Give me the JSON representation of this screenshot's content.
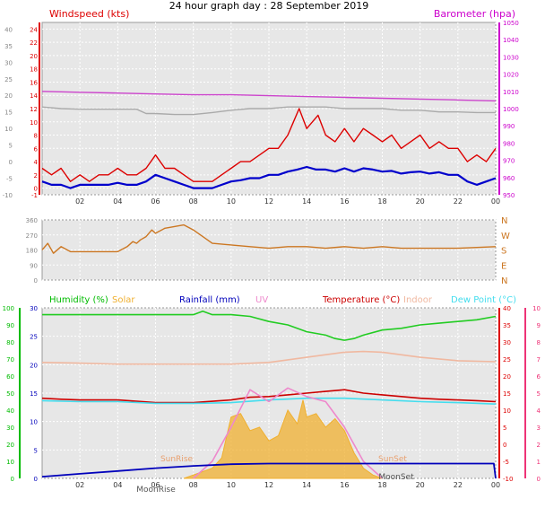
{
  "title": "24 hour graph day : 28 September 2019",
  "colors": {
    "windspeed": "#dd0000",
    "gust": "#ff0000",
    "avgwind": "#0000cc",
    "barometer": "#cc44cc",
    "barometer_prev": "#aaaaaa",
    "direction": "#cc7722",
    "humidity": "#22cc22",
    "solar": "#f0b030",
    "rainfall": "#0000bb",
    "uv": "#ee88cc",
    "temperature": "#cc0000",
    "indoor": "#f0b8a0",
    "dewpoint": "#44ddee",
    "axis_green": "#00bb00",
    "axis_red": "#dd0000",
    "axis_magenta": "#cc00cc",
    "axis_pink": "#ee3377",
    "axis_grey": "#888888"
  },
  "chart_data": [
    {
      "type": "line",
      "panel": "wind-baro",
      "x_ticks": [
        "02",
        "04",
        "06",
        "08",
        "10",
        "12",
        "14",
        "16",
        "18",
        "20",
        "22",
        "00"
      ],
      "xlim": [
        0,
        24
      ],
      "left_axis": {
        "label": "Windspeed (kts)",
        "ticks": [
          "-1",
          "0",
          "2",
          "4",
          "6",
          "8",
          "10",
          "12",
          "14",
          "16",
          "18",
          "20",
          "22",
          "24"
        ],
        "ylim": [
          -1,
          25
        ]
      },
      "left_axis_secondary": {
        "ticks": [
          "-10",
          "-5",
          "0",
          "5",
          "10",
          "15",
          "20",
          "25",
          "30",
          "35",
          "40"
        ],
        "ylim": [
          -10,
          42
        ]
      },
      "right_axis": {
        "label": "Barometer (hpa)",
        "ticks": [
          "950",
          "960",
          "970",
          "980",
          "990",
          "1000",
          "1010",
          "1020",
          "1030",
          "1040",
          "1050"
        ],
        "ylim": [
          950,
          1050
        ]
      },
      "series": [
        {
          "name": "Barometer (hpa)",
          "axis": "right",
          "color_key": "barometer",
          "x": [
            0,
            2,
            4,
            6,
            8,
            10,
            12,
            14,
            16,
            18,
            20,
            22,
            24
          ],
          "y": [
            1010,
            1009.5,
            1009,
            1008.5,
            1008,
            1008,
            1007.5,
            1007,
            1006.5,
            1006,
            1005.5,
            1005,
            1004.5
          ]
        },
        {
          "axis": "left_secondary",
          "color_key": "barometer_prev",
          "x": [
            0,
            1,
            2,
            3,
            4,
            5,
            5.5,
            6,
            7,
            8,
            9,
            10,
            11,
            12,
            13,
            14,
            15,
            16,
            17,
            18,
            19,
            20,
            21,
            22,
            23,
            24
          ],
          "y": [
            16.5,
            16,
            15.8,
            15.8,
            15.8,
            15.8,
            14.5,
            14.5,
            14.2,
            14.2,
            14.8,
            15.5,
            16,
            16,
            16.5,
            16.5,
            16.5,
            16,
            16,
            16,
            15.5,
            15.5,
            15,
            15,
            14.8,
            14.8
          ]
        },
        {
          "name": "Windspeed (kts)",
          "axis": "left",
          "color_key": "windspeed",
          "x": [
            0,
            0.5,
            1,
            1.5,
            2,
            2.5,
            3,
            3.5,
            4,
            4.5,
            5,
            5.5,
            6,
            6.5,
            7,
            7.5,
            8,
            8.5,
            9,
            9.5,
            10,
            10.5,
            11,
            11.5,
            12,
            12.5,
            13,
            13.3,
            13.6,
            14,
            14.3,
            14.6,
            15,
            15.5,
            16,
            16.5,
            17,
            17.5,
            18,
            18.5,
            19,
            19.5,
            20,
            20.5,
            21,
            21.5,
            22,
            22.5,
            23,
            23.5,
            24
          ],
          "y": [
            3,
            2,
            3,
            1,
            2,
            1,
            2,
            2,
            3,
            2,
            2,
            3,
            5,
            3,
            3,
            2,
            1,
            1,
            1,
            2,
            3,
            4,
            4,
            5,
            6,
            6,
            8,
            10,
            12,
            9,
            10,
            11,
            8,
            7,
            9,
            7,
            9,
            8,
            7,
            8,
            6,
            7,
            8,
            6,
            7,
            6,
            6,
            4,
            5,
            4,
            6
          ]
        },
        {
          "axis": "left",
          "color_key": "avgwind",
          "x": [
            0,
            0.5,
            1,
            1.5,
            2,
            2.5,
            3,
            3.5,
            4,
            4.5,
            5,
            5.5,
            6,
            6.5,
            7,
            7.5,
            8,
            8.5,
            9,
            9.5,
            10,
            10.5,
            11,
            11.5,
            12,
            12.5,
            13,
            13.5,
            14,
            14.5,
            15,
            15.5,
            16,
            16.5,
            17,
            17.5,
            18,
            18.5,
            19,
            19.5,
            20,
            20.5,
            21,
            21.5,
            22,
            22.5,
            23,
            23.5,
            24
          ],
          "y": [
            1,
            0.5,
            0.5,
            0,
            0.5,
            0.5,
            0.5,
            0.5,
            0.8,
            0.5,
            0.5,
            1,
            2,
            1.5,
            1,
            0.5,
            0,
            0,
            0,
            0.5,
            1,
            1.2,
            1.5,
            1.5,
            2,
            2,
            2.5,
            2.8,
            3.2,
            2.8,
            2.8,
            2.5,
            3,
            2.5,
            3,
            2.8,
            2.5,
            2.6,
            2.2,
            2.4,
            2.5,
            2.2,
            2.4,
            2,
            2,
            1,
            0.5,
            1,
            1.5
          ]
        }
      ]
    },
    {
      "type": "line",
      "panel": "wind-direction",
      "xlim": [
        0,
        24
      ],
      "left_axis": {
        "ticks": [
          "0",
          "90",
          "180",
          "270",
          "360"
        ],
        "ylim": [
          0,
          360
        ]
      },
      "right_axis": {
        "ticks": [
          "N",
          "E",
          "S",
          "W",
          "N"
        ]
      },
      "series": [
        {
          "axis": "left",
          "color_key": "direction",
          "x": [
            0,
            0.3,
            0.6,
            1,
            1.5,
            2,
            3,
            4,
            4.5,
            4.8,
            5,
            5.2,
            5.5,
            5.8,
            6,
            6.5,
            7,
            7.5,
            8,
            8.5,
            9,
            10,
            11,
            12,
            13,
            14,
            15,
            16,
            17,
            18,
            19,
            20,
            21,
            22,
            23,
            24
          ],
          "y": [
            180,
            220,
            160,
            200,
            170,
            170,
            170,
            170,
            200,
            230,
            220,
            240,
            260,
            300,
            280,
            310,
            320,
            330,
            300,
            260,
            220,
            210,
            200,
            190,
            200,
            200,
            190,
            200,
            190,
            200,
            190,
            190,
            190,
            190,
            195,
            200
          ]
        }
      ]
    },
    {
      "type": "line",
      "panel": "temp-humidity",
      "x_ticks": [
        "02",
        "04",
        "06",
        "08",
        "10",
        "12",
        "14",
        "16",
        "18",
        "20",
        "22",
        "00"
      ],
      "xlim": [
        0,
        24
      ],
      "top_labels": [
        "Humidity (%)",
        "Solar",
        "Rainfall (mm)",
        "UV",
        "Temperature (°C)",
        "Indoor",
        "Dew Point (°C)"
      ],
      "left_axis": {
        "ticks": [
          "0",
          "10",
          "20",
          "30",
          "40",
          "50",
          "60",
          "70",
          "80",
          "90",
          "100"
        ],
        "ylim": [
          0,
          100
        ]
      },
      "left_axis_secondary": {
        "ticks": [
          "0",
          "5",
          "10",
          "15",
          "20",
          "25",
          "30"
        ],
        "ylim": [
          0,
          30
        ]
      },
      "right_axis": {
        "ticks": [
          "-10",
          "-5",
          "0",
          "5",
          "10",
          "15",
          "20",
          "25",
          "30",
          "35",
          "40"
        ],
        "ylim": [
          -10,
          40
        ]
      },
      "right_axis_secondary": {
        "ticks": [
          "0",
          "1",
          "2",
          "3",
          "4",
          "5",
          "6",
          "7",
          "8",
          "9",
          "10"
        ],
        "ylim": [
          0,
          10
        ]
      },
      "annotations": [
        "SunRise",
        "SunSet",
        "MoonRise",
        "MoonSet"
      ],
      "series": [
        {
          "name": "Humidity (%)",
          "axis": "left",
          "color_key": "humidity",
          "x": [
            0,
            2,
            4,
            6,
            8,
            8.5,
            9,
            10,
            11,
            12,
            13,
            14,
            15,
            15.5,
            16,
            16.5,
            17,
            18,
            19,
            20,
            21,
            22,
            23,
            24
          ],
          "y": [
            96,
            96,
            96,
            96,
            96,
            98,
            96,
            96,
            95,
            92,
            90,
            86,
            84,
            82,
            81,
            82,
            84,
            87,
            88,
            90,
            91,
            92,
            93,
            95
          ]
        },
        {
          "name": "Indoor",
          "axis": "right",
          "color_key": "indoor",
          "x": [
            0,
            2,
            4,
            6,
            8,
            10,
            12,
            14,
            16,
            17,
            18,
            20,
            22,
            24
          ],
          "y": [
            24,
            23.8,
            23.5,
            23.5,
            23.5,
            23.5,
            24,
            25.5,
            27,
            27.2,
            27,
            25.5,
            24.5,
            24.2
          ]
        },
        {
          "name": "Temperature (°C)",
          "axis": "right",
          "color_key": "temperature",
          "x": [
            0,
            1,
            2,
            4,
            6,
            8,
            10,
            11,
            12,
            13,
            14,
            15,
            16,
            17,
            18,
            19,
            20,
            21,
            22,
            23,
            24
          ],
          "y": [
            13.5,
            13.2,
            13,
            13,
            12.2,
            12.2,
            13,
            13.8,
            14,
            14.5,
            15,
            15.5,
            16,
            15,
            14.5,
            14,
            13.5,
            13.2,
            13,
            12.8,
            12.5
          ]
        },
        {
          "name": "Dew Point (°C)",
          "axis": "right",
          "color_key": "dewpoint",
          "x": [
            0,
            2,
            4,
            6,
            8,
            10,
            12,
            14,
            16,
            18,
            20,
            22,
            24
          ],
          "y": [
            12.8,
            12.5,
            12.5,
            12,
            12,
            12.2,
            13,
            13.5,
            13.5,
            13,
            12.5,
            12.2,
            11.8
          ]
        },
        {
          "name": "Solar",
          "axis": "left",
          "color_key": "solar",
          "fill": true,
          "x": [
            7.5,
            8,
            9,
            9.5,
            10,
            10.5,
            11,
            11.5,
            12,
            12.5,
            13,
            13.5,
            13.8,
            14,
            14.5,
            15,
            15.5,
            16,
            16.5,
            17,
            17.5,
            18
          ],
          "y": [
            0,
            2,
            6,
            12,
            36,
            38,
            28,
            30,
            22,
            25,
            40,
            32,
            46,
            36,
            38,
            30,
            35,
            28,
            15,
            6,
            2,
            0
          ]
        },
        {
          "name": "UV",
          "axis": "right_secondary",
          "color_key": "uv",
          "x": [
            8,
            9,
            10,
            11,
            12,
            13,
            14,
            15,
            16,
            17,
            18
          ],
          "y": [
            0,
            1,
            3,
            5.2,
            4.5,
            5.3,
            4.8,
            4.5,
            3,
            1,
            0
          ]
        },
        {
          "name": "Rainfall (mm)",
          "axis": "left_secondary",
          "color_key": "rainfall",
          "x": [
            0,
            2,
            4,
            6,
            8,
            10,
            12,
            14,
            16,
            18,
            20,
            22,
            23.9,
            24
          ],
          "y": [
            0.3,
            0.8,
            1.3,
            1.8,
            2.2,
            2.5,
            2.6,
            2.6,
            2.6,
            2.6,
            2.6,
            2.6,
            2.6,
            0
          ]
        }
      ]
    }
  ]
}
